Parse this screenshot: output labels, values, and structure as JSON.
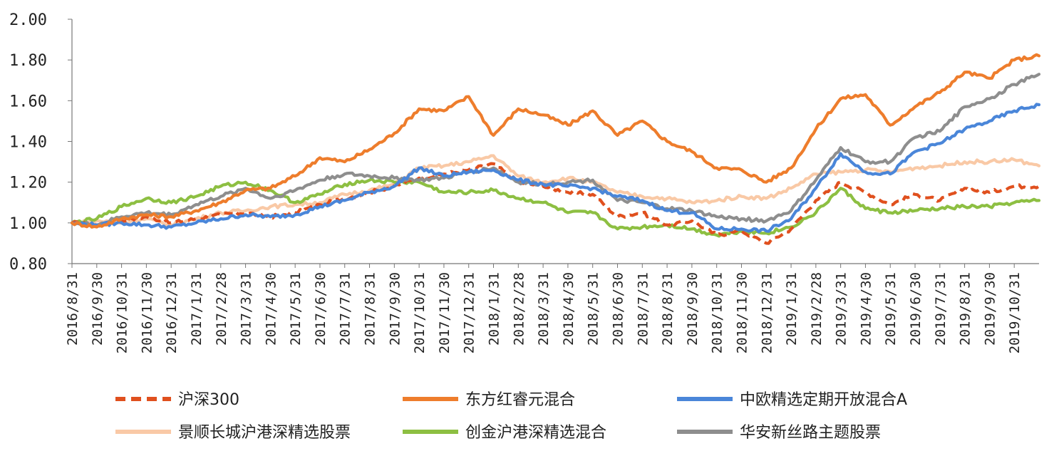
{
  "chart_data": {
    "type": "line",
    "title": "",
    "xlabel": "",
    "ylabel": "",
    "ylim": [
      0.8,
      2.0
    ],
    "yticks": [
      "0.80",
      "1.00",
      "1.20",
      "1.40",
      "1.60",
      "1.80",
      "2.00"
    ],
    "grid": false,
    "legend_position": "bottom",
    "x": [
      "2016/8/31",
      "2016/9/30",
      "2016/10/31",
      "2016/11/30",
      "2016/12/31",
      "2017/1/31",
      "2017/2/28",
      "2017/3/31",
      "2017/4/30",
      "2017/5/31",
      "2017/6/30",
      "2017/7/31",
      "2017/8/31",
      "2017/9/30",
      "2017/10/31",
      "2017/11/30",
      "2017/12/31",
      "2018/1/31",
      "2018/2/28",
      "2018/3/31",
      "2018/4/30",
      "2018/5/31",
      "2018/6/30",
      "2018/7/31",
      "2018/8/31",
      "2018/9/30",
      "2018/10/31",
      "2018/11/30",
      "2018/12/31",
      "2019/1/31",
      "2019/2/28",
      "2019/3/31",
      "2019/4/30",
      "2019/5/31",
      "2019/6/30",
      "2019/7/31",
      "2019/8/31",
      "2019/9/30",
      "2019/10/31",
      "2019/11/15"
    ],
    "xtick_labels": [
      "2016/8/31",
      "2016/9/30",
      "2016/10/31",
      "2016/11/30",
      "2016/12/31",
      "2017/1/31",
      "2017/2/28",
      "2017/3/31",
      "2017/4/30",
      "2017/5/31",
      "2017/6/30",
      "2017/7/31",
      "2017/8/31",
      "2017/9/30",
      "2017/10/31",
      "2017/11/30",
      "2017/12/31",
      "2018/1/31",
      "2018/2/28",
      "2018/3/31",
      "2018/4/30",
      "2018/5/31",
      "2018/6/30",
      "2018/7/31",
      "2018/8/31",
      "2018/9/30",
      "2018/10/31",
      "2018/11/30",
      "2018/12/31",
      "2019/1/31",
      "2019/2/28",
      "2019/3/31",
      "2019/4/30",
      "2019/5/31",
      "2019/6/30",
      "2019/7/31",
      "2019/8/31",
      "2019/9/30",
      "2019/10/31"
    ],
    "series": [
      {
        "name": "沪深300",
        "color": "#E0501E",
        "dashed": true,
        "values": [
          1.0,
          0.99,
          1.01,
          1.03,
          1.0,
          1.02,
          1.04,
          1.05,
          1.03,
          1.05,
          1.09,
          1.12,
          1.15,
          1.18,
          1.22,
          1.24,
          1.26,
          1.29,
          1.2,
          1.18,
          1.15,
          1.14,
          1.03,
          1.05,
          0.99,
          1.01,
          0.94,
          0.96,
          0.9,
          0.97,
          1.11,
          1.2,
          1.15,
          1.09,
          1.14,
          1.11,
          1.17,
          1.15,
          1.18,
          1.18
        ]
      },
      {
        "name": "东方红睿元混合",
        "color": "#EE7D2C",
        "dashed": false,
        "values": [
          1.0,
          0.98,
          1.02,
          1.04,
          1.03,
          1.06,
          1.1,
          1.16,
          1.17,
          1.23,
          1.32,
          1.3,
          1.36,
          1.44,
          1.56,
          1.55,
          1.62,
          1.43,
          1.56,
          1.53,
          1.48,
          1.55,
          1.43,
          1.5,
          1.4,
          1.35,
          1.27,
          1.26,
          1.2,
          1.27,
          1.46,
          1.61,
          1.63,
          1.48,
          1.57,
          1.64,
          1.74,
          1.71,
          1.8,
          1.82
        ]
      },
      {
        "name": "中欧精选定期开放混合A",
        "color": "#4A86D9",
        "dashed": false,
        "values": [
          1.0,
          0.99,
          1.0,
          0.99,
          0.98,
          1.0,
          1.02,
          1.04,
          1.03,
          1.04,
          1.08,
          1.11,
          1.15,
          1.18,
          1.27,
          1.23,
          1.25,
          1.26,
          1.21,
          1.19,
          1.18,
          1.17,
          1.13,
          1.11,
          1.06,
          1.05,
          0.97,
          0.97,
          0.96,
          1.02,
          1.17,
          1.34,
          1.25,
          1.24,
          1.35,
          1.39,
          1.46,
          1.5,
          1.55,
          1.58
        ]
      },
      {
        "name": "景顺长城沪港深精选股票",
        "color": "#F9C9A6",
        "dashed": false,
        "values": [
          1.0,
          1.01,
          1.0,
          1.02,
          0.99,
          1.02,
          1.05,
          1.06,
          1.08,
          1.09,
          1.1,
          1.14,
          1.16,
          1.19,
          1.27,
          1.28,
          1.3,
          1.33,
          1.23,
          1.2,
          1.22,
          1.2,
          1.15,
          1.13,
          1.12,
          1.1,
          1.11,
          1.13,
          1.12,
          1.17,
          1.24,
          1.25,
          1.26,
          1.25,
          1.27,
          1.28,
          1.3,
          1.3,
          1.31,
          1.28
        ]
      },
      {
        "name": "创金沪港深精选混合",
        "color": "#8DBF42",
        "dashed": false,
        "values": [
          1.0,
          1.02,
          1.08,
          1.12,
          1.1,
          1.13,
          1.18,
          1.2,
          1.16,
          1.1,
          1.14,
          1.19,
          1.21,
          1.2,
          1.2,
          1.15,
          1.15,
          1.16,
          1.12,
          1.1,
          1.05,
          1.05,
          0.97,
          0.98,
          0.99,
          0.97,
          0.94,
          0.96,
          0.95,
          0.98,
          1.05,
          1.17,
          1.07,
          1.05,
          1.06,
          1.07,
          1.08,
          1.08,
          1.1,
          1.11
        ]
      },
      {
        "name": "华安新丝路主题股票",
        "color": "#8E8E8E",
        "dashed": false,
        "values": [
          1.0,
          0.99,
          1.03,
          1.05,
          1.04,
          1.09,
          1.13,
          1.17,
          1.12,
          1.16,
          1.21,
          1.24,
          1.23,
          1.22,
          1.21,
          1.22,
          1.25,
          1.27,
          1.2,
          1.19,
          1.2,
          1.21,
          1.11,
          1.1,
          1.07,
          1.06,
          1.03,
          1.02,
          1.01,
          1.06,
          1.21,
          1.37,
          1.3,
          1.3,
          1.42,
          1.45,
          1.57,
          1.61,
          1.68,
          1.73
        ]
      }
    ]
  }
}
